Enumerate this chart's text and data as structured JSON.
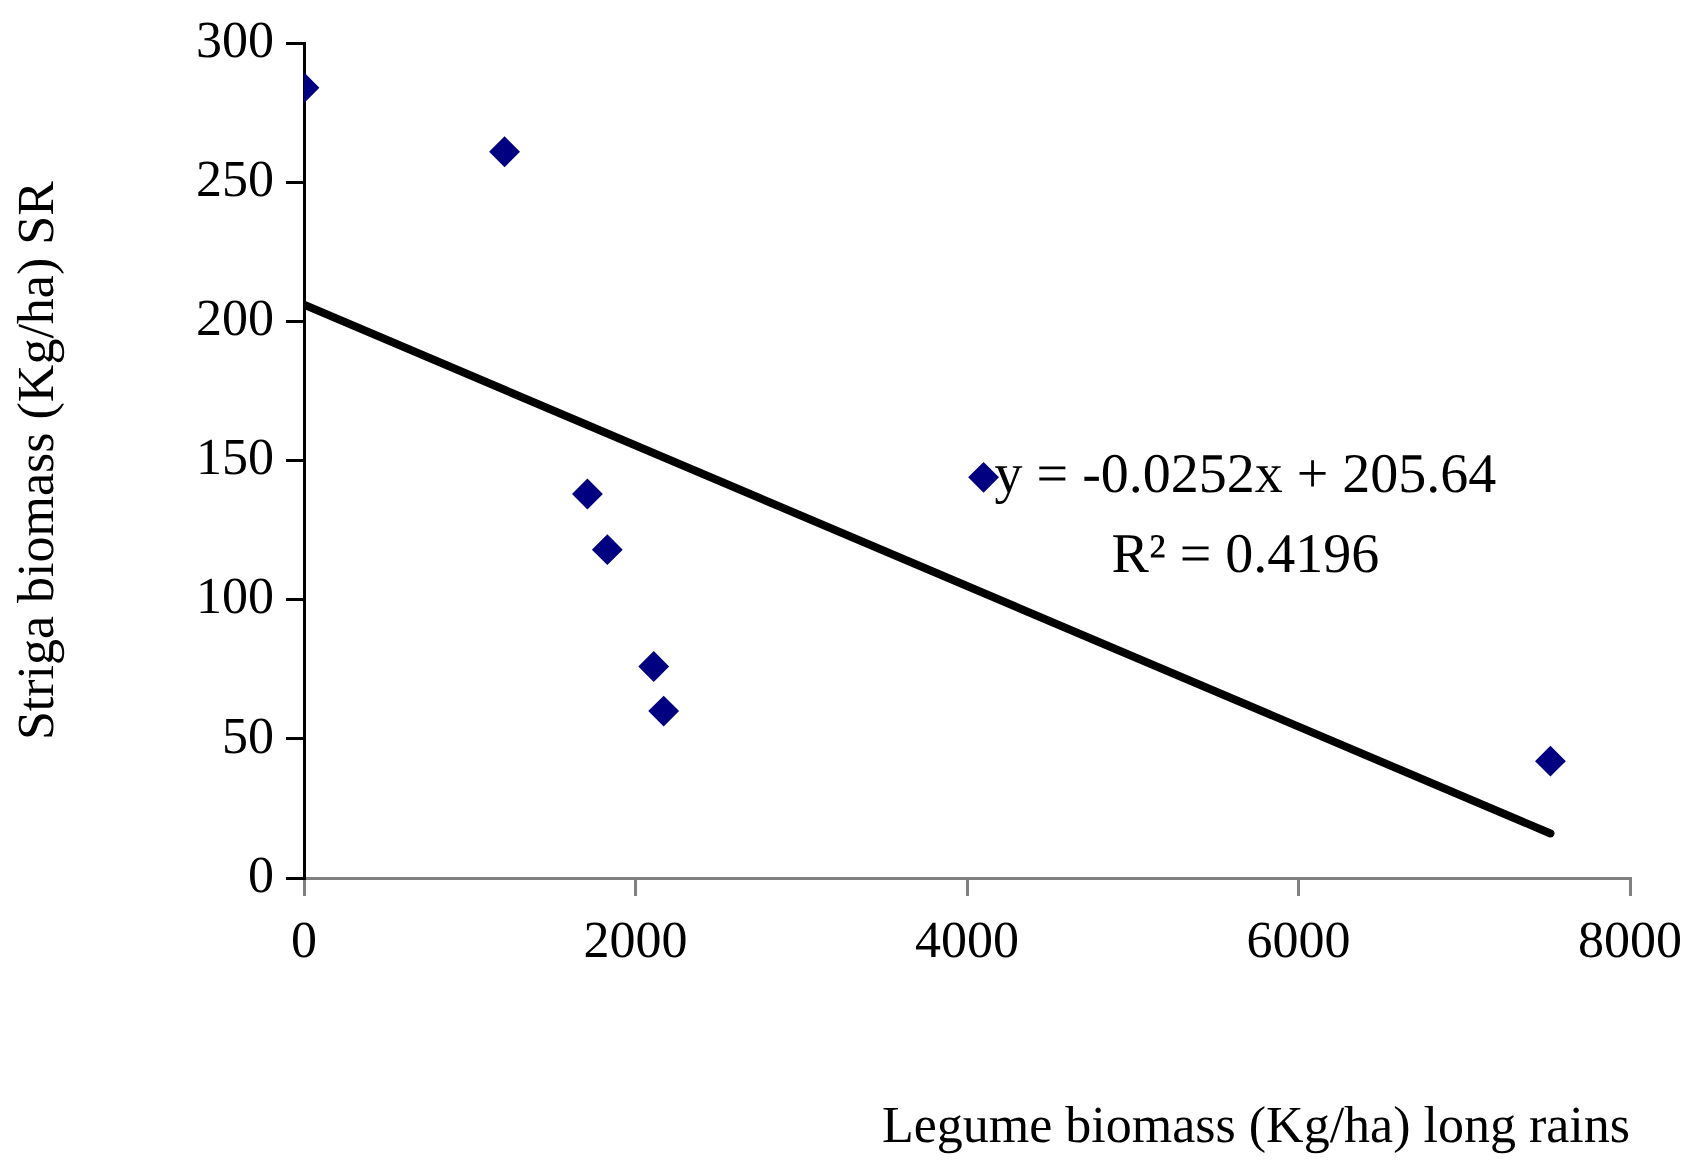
{
  "chart_data": {
    "type": "scatter",
    "xlabel": "Legume biomass (Kg/ha) long rains",
    "ylabel": "Striga biomass (Kg/ha) SR",
    "x": [
      0,
      1210,
      1710,
      1830,
      2110,
      2170,
      4100,
      7520
    ],
    "series": [
      {
        "color": "#000080",
        "marker": "diamond",
        "values": [
          284,
          261,
          138,
          118,
          76,
          60,
          144,
          42
        ]
      },
      {
        "type": "line",
        "color": "#000000",
        "marker": "none",
        "x": [
          0,
          7520
        ],
        "values": [
          206,
          16
        ]
      }
    ],
    "xlim": [
      0,
      8000
    ],
    "xticks": [
      0,
      2000,
      4000,
      6000,
      8000
    ],
    "ylim": [
      0,
      300
    ],
    "yticks": [
      0,
      50,
      100,
      150,
      200,
      250,
      300
    ],
    "grid": false,
    "legend": false,
    "annotations": [
      "y = -0.0252x + 205.64",
      "R² = 0.4196"
    ]
  }
}
